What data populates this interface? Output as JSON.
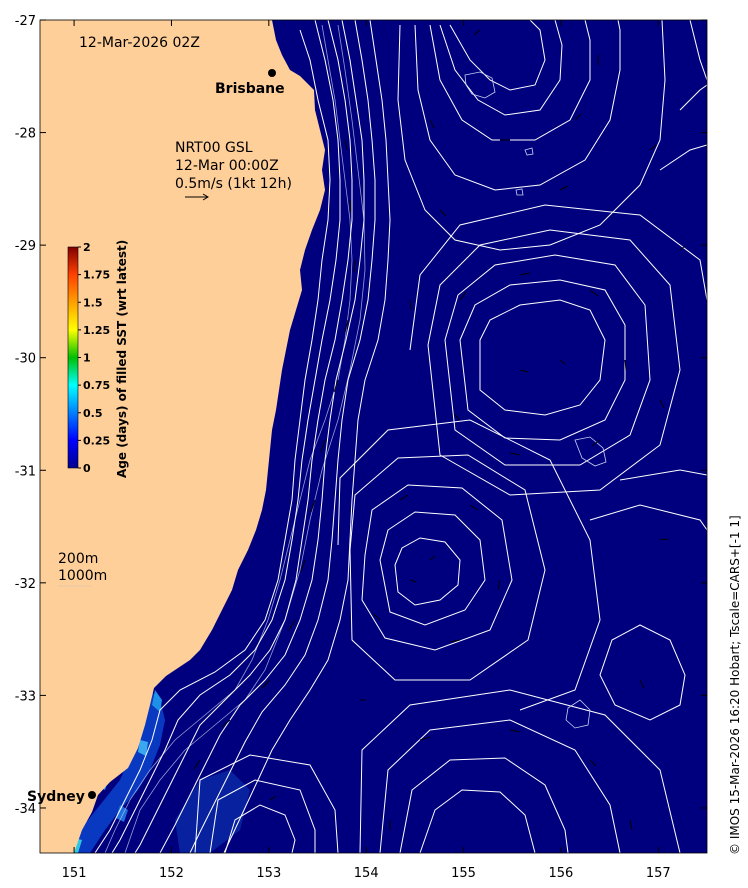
{
  "map": {
    "timestamp": "12-Mar-2026 02Z",
    "vector_info": {
      "line1": "NRT00 GSL",
      "line2": "12-Mar 00:00Z",
      "line3": "0.5m/s (1kt 12h)"
    },
    "depth_legend": [
      "200m",
      "1000m"
    ],
    "cities": [
      {
        "name": "Brisbane",
        "lon": 153.02,
        "lat": -27.47
      },
      {
        "name": "Sydney",
        "lon": 151.2,
        "lat": -33.87
      }
    ],
    "credit": "© IMOS 15-Mar-2026 16:20 Hobart; Tscale=CARS+[-1 1]",
    "colors": {
      "land": "#ffcf9a",
      "ocean": "#00007f",
      "contour": "#ffffff",
      "vector": "#000000"
    }
  },
  "axes": {
    "xlim": [
      150.65,
      157.5
    ],
    "ylim": [
      -34.4,
      -27
    ],
    "x_ticks": [
      "151",
      "152",
      "153",
      "154",
      "155",
      "156",
      "157"
    ],
    "y_ticks": [
      "-27",
      "-28",
      "-29",
      "-30",
      "-31",
      "-32",
      "-33",
      "-34"
    ]
  },
  "colorbar": {
    "title": "Age (days) of filled SST (wrt latest)",
    "ticks": [
      "2",
      "1.75",
      "1.5",
      "1.25",
      "1",
      "0.75",
      "0.5",
      "0.25",
      "0"
    ],
    "colormap": "jet",
    "range": [
      0,
      2
    ]
  }
}
